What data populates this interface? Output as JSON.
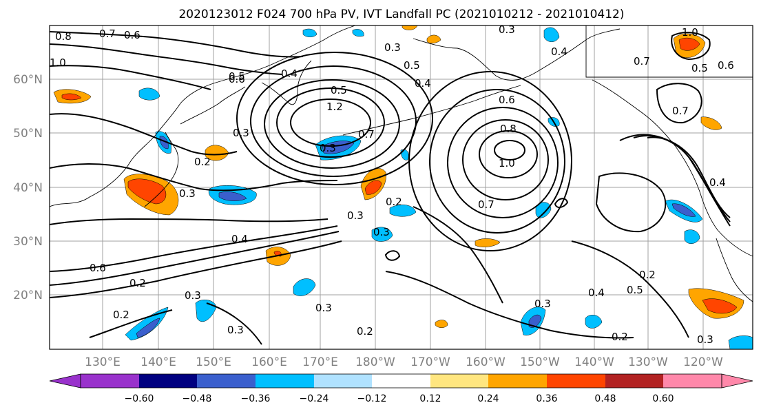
{
  "title": "2020123012 F024 700 hPa PV, IVT Landfall PC (2021010212 - 2021010412)",
  "lat_labels": [
    "20°N",
    "30°N",
    "40°N",
    "50°N",
    "60°N"
  ],
  "lon_labels": [
    "130°E",
    "140°E",
    "150°E",
    "160°E",
    "170°E",
    "180°W",
    "170°W",
    "160°W",
    "150°W",
    "140°W",
    "130°W",
    "120°W"
  ],
  "colorbar": {
    "ticks": [
      "−0.60",
      "−0.48",
      "−0.36",
      "−0.24",
      "−0.12",
      "0.12",
      "0.24",
      "0.36",
      "0.48",
      "0.60"
    ],
    "colors": [
      "#9932cc",
      "#000080",
      "#3a5fcd",
      "#00bfff",
      "#b0e2ff",
      "#ffffff",
      "#ffe680",
      "#ffa500",
      "#ff4500",
      "#b22222",
      "#ff88aa"
    ]
  },
  "contour_labels": [
    "0.8",
    "0.7",
    "0.6",
    "1.0",
    "0.5",
    "0.3",
    "0.4",
    "1.2",
    "0.3",
    "0.7",
    "0.2",
    "0.8",
    "1.0",
    "0.7",
    "0.3",
    "0.2",
    "0.3",
    "0.4",
    "0.6",
    "0.2",
    "0.2",
    "0.3",
    "0.3",
    "0.2",
    "0.3",
    "0.4",
    "0.2",
    "0.5",
    "0.3",
    "0.7",
    "0.6",
    "0.5",
    "0.4",
    "0.6",
    "0.3",
    "0.5",
    "1.0",
    "0.4",
    "0.2",
    "0.3",
    "0.3",
    "0.5",
    "0.6",
    "0.7",
    "0.3",
    "0.4"
  ],
  "chart_data": {
    "type": "contour-map",
    "title": "2020123012 F024 700 hPa PV, IVT Landfall PC (2021010212 - 2021010412)",
    "field_contours": "700 hPa PV (contours)",
    "field_shaded": "IVT Landfall PC (shaded)",
    "lon_range": [
      "120°E",
      "115°W"
    ],
    "lat_range": [
      "10°N",
      "70°N"
    ],
    "contour_levels": [
      0.2,
      0.3,
      0.4,
      0.5,
      0.6,
      0.7,
      0.8,
      1.0,
      1.2
    ],
    "colorbar_levels": [
      -0.6,
      -0.48,
      -0.36,
      -0.24,
      -0.12,
      0.12,
      0.24,
      0.36,
      0.48,
      0.6
    ],
    "grid": true
  }
}
